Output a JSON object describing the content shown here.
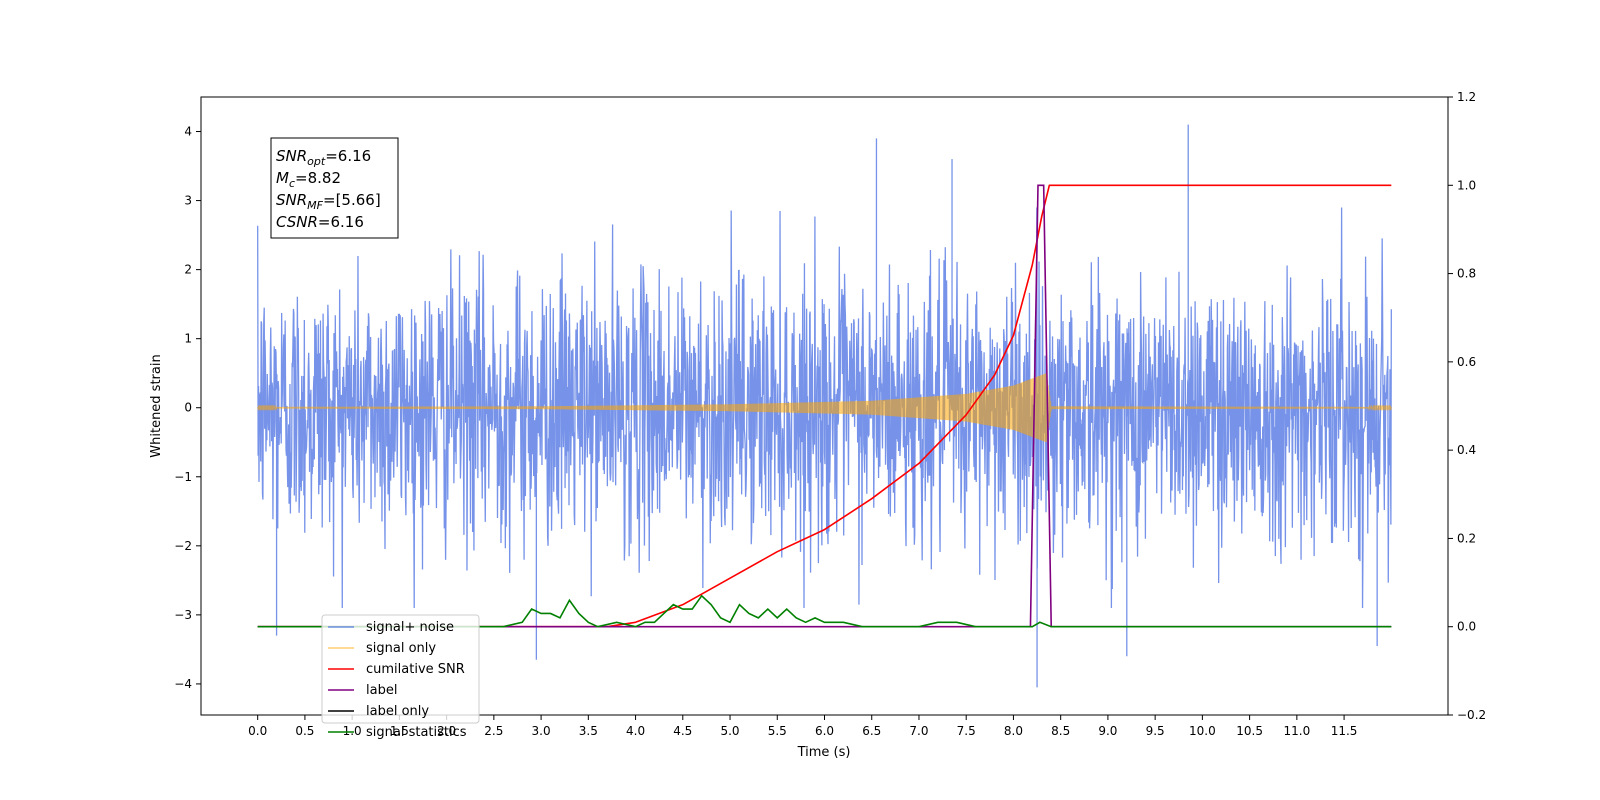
{
  "chart_data": {
    "type": "line",
    "xlabel": "Time (s)",
    "ylabel_left": "Whitened strain",
    "ylabel_right": "",
    "xlim": [
      -0.6,
      12.6
    ],
    "ylim_left": [
      -4.45,
      4.5
    ],
    "ylim_right": [
      -0.2,
      1.2
    ],
    "x_ticks": [
      0.0,
      0.5,
      1.0,
      1.5,
      2.0,
      2.5,
      3.0,
      3.5,
      4.0,
      4.5,
      5.0,
      5.5,
      6.0,
      6.5,
      7.0,
      7.5,
      8.0,
      8.5,
      9.0,
      9.5,
      10.0,
      10.5,
      11.0,
      11.5
    ],
    "x_tick_labels": [
      "0.0",
      "0.5",
      "1.0",
      "1.5",
      "2.0",
      "2.5",
      "3.0",
      "3.5",
      "4.0",
      "4.5",
      "5.0",
      "5.5",
      "6.0",
      "6.5",
      "7.0",
      "7.5",
      "8.0",
      "8.5",
      "9.0",
      "9.5",
      "10.0",
      "10.5",
      "11.0",
      "11.5"
    ],
    "y_left_ticks": [
      -4,
      -3,
      -2,
      -1,
      0,
      1,
      2,
      3,
      4
    ],
    "y_left_tick_labels": [
      "−4",
      "−3",
      "−2",
      "−1",
      "0",
      "1",
      "2",
      "3",
      "4"
    ],
    "y_right_ticks": [
      -0.2,
      0.0,
      0.2,
      0.4,
      0.6,
      0.8,
      1.0,
      1.2
    ],
    "y_right_tick_labels": [
      "−0.2",
      "0.0",
      "0.2",
      "0.4",
      "0.6",
      "0.8",
      "1.0",
      "1.2"
    ],
    "grid": false,
    "legend_position": "lower-left",
    "annotation": {
      "lines": [
        {
          "name": "SNR",
          "sub": "opt",
          "value": "=6.16"
        },
        {
          "name": "M",
          "sub": "c",
          "value": "=8.82"
        },
        {
          "name": "SNR",
          "sub": "MF",
          "value": "=[5.66]"
        },
        {
          "name": "CSNR",
          "sub": "",
          "value": "=6.16"
        }
      ]
    },
    "series": [
      {
        "name": "signal+ noise",
        "axis": "left",
        "color": "#4169e1",
        "style": "noise",
        "x_range": [
          0.0,
          12.0
        ],
        "amplitude_envelope": [
          -2.5,
          2.5
        ],
        "extremes": [
          {
            "x": 0.2,
            "y": -3.3
          },
          {
            "x": 2.95,
            "y": -3.65
          },
          {
            "x": 6.55,
            "y": 3.9
          },
          {
            "x": 7.35,
            "y": 3.6
          },
          {
            "x": 8.25,
            "y": -4.05
          },
          {
            "x": 9.2,
            "y": -3.6
          },
          {
            "x": 9.85,
            "y": 4.1
          },
          {
            "x": 11.85,
            "y": -3.45
          }
        ]
      },
      {
        "name": "signal only",
        "axis": "left",
        "color": "#ffa500",
        "style": "chirp",
        "x_range": [
          0.0,
          12.0
        ],
        "envelope": [
          {
            "x": 0.0,
            "amp": 0.01
          },
          {
            "x": 3.0,
            "amp": 0.02
          },
          {
            "x": 5.0,
            "amp": 0.05
          },
          {
            "x": 6.5,
            "amp": 0.1
          },
          {
            "x": 7.5,
            "amp": 0.2
          },
          {
            "x": 8.0,
            "amp": 0.32
          },
          {
            "x": 8.35,
            "amp": 0.5
          },
          {
            "x": 8.4,
            "amp": 0.02
          },
          {
            "x": 12.0,
            "amp": 0.01
          }
        ]
      },
      {
        "name": "cumilative SNR",
        "axis": "right",
        "color": "#ff0000",
        "x": [
          0.0,
          3.7,
          4.0,
          4.5,
          5.0,
          5.5,
          6.0,
          6.5,
          7.0,
          7.5,
          7.8,
          8.0,
          8.2,
          8.3,
          8.38,
          12.0
        ],
        "y": [
          0.0,
          0.0,
          0.01,
          0.05,
          0.11,
          0.17,
          0.22,
          0.29,
          0.37,
          0.48,
          0.57,
          0.66,
          0.82,
          0.93,
          1.0,
          1.0
        ]
      },
      {
        "name": "label",
        "axis": "right",
        "color": "#800080",
        "x": [
          0.0,
          8.18,
          8.26,
          8.32,
          8.4,
          12.0
        ],
        "y": [
          0.0,
          0.0,
          1.0,
          1.0,
          0.0,
          0.0
        ]
      },
      {
        "name": "label only",
        "axis": "right",
        "color": "#000000",
        "hidden_in_plot": true
      },
      {
        "name": "signal statistics",
        "axis": "right",
        "color": "#008000",
        "x": [
          0.0,
          2.6,
          2.8,
          2.9,
          3.0,
          3.1,
          3.2,
          3.3,
          3.4,
          3.5,
          3.6,
          3.8,
          4.0,
          4.1,
          4.2,
          4.3,
          4.4,
          4.5,
          4.6,
          4.7,
          4.8,
          4.9,
          5.0,
          5.1,
          5.2,
          5.3,
          5.4,
          5.5,
          5.6,
          5.7,
          5.8,
          5.9,
          6.0,
          6.2,
          6.4,
          6.6,
          6.8,
          7.0,
          7.2,
          7.4,
          7.6,
          7.8,
          8.0,
          8.2,
          8.28,
          8.4,
          9.0,
          12.0
        ],
        "y": [
          0.0,
          0.0,
          0.01,
          0.04,
          0.03,
          0.03,
          0.02,
          0.06,
          0.03,
          0.01,
          0.0,
          0.01,
          0.0,
          0.01,
          0.01,
          0.03,
          0.05,
          0.04,
          0.04,
          0.07,
          0.05,
          0.02,
          0.01,
          0.05,
          0.03,
          0.02,
          0.04,
          0.02,
          0.04,
          0.02,
          0.01,
          0.02,
          0.01,
          0.01,
          0.0,
          0.0,
          0.0,
          0.0,
          0.01,
          0.01,
          0.0,
          0.0,
          0.0,
          0.0,
          0.01,
          0.0,
          0.0,
          0.0
        ]
      }
    ]
  }
}
